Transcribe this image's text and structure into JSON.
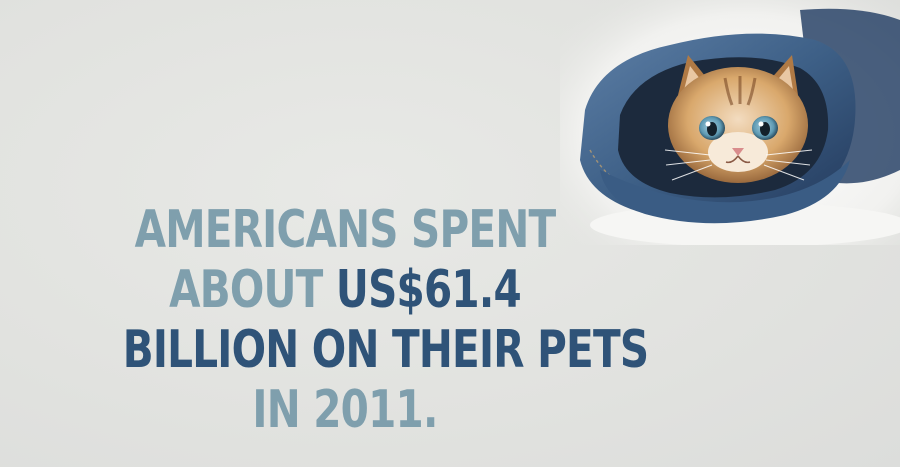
{
  "photo": {
    "subject_icon": "kitten-in-denim-icon",
    "colors": {
      "denim": "#3d5f86",
      "denim_dark": "#22385a",
      "fur": "#d9a86c",
      "eyes": "#5e9ab3",
      "backdrop": "#f3f3f1"
    }
  },
  "fact": {
    "line1": "AMERICANS SPENT",
    "line2_part1": "ABOUT ",
    "line2_part2": "US$61.4",
    "line3": "BILLION ON THEIR PETS",
    "line4": "IN 2011.",
    "colors": {
      "light": "#7f9fad",
      "dark": "#2f5378"
    }
  }
}
